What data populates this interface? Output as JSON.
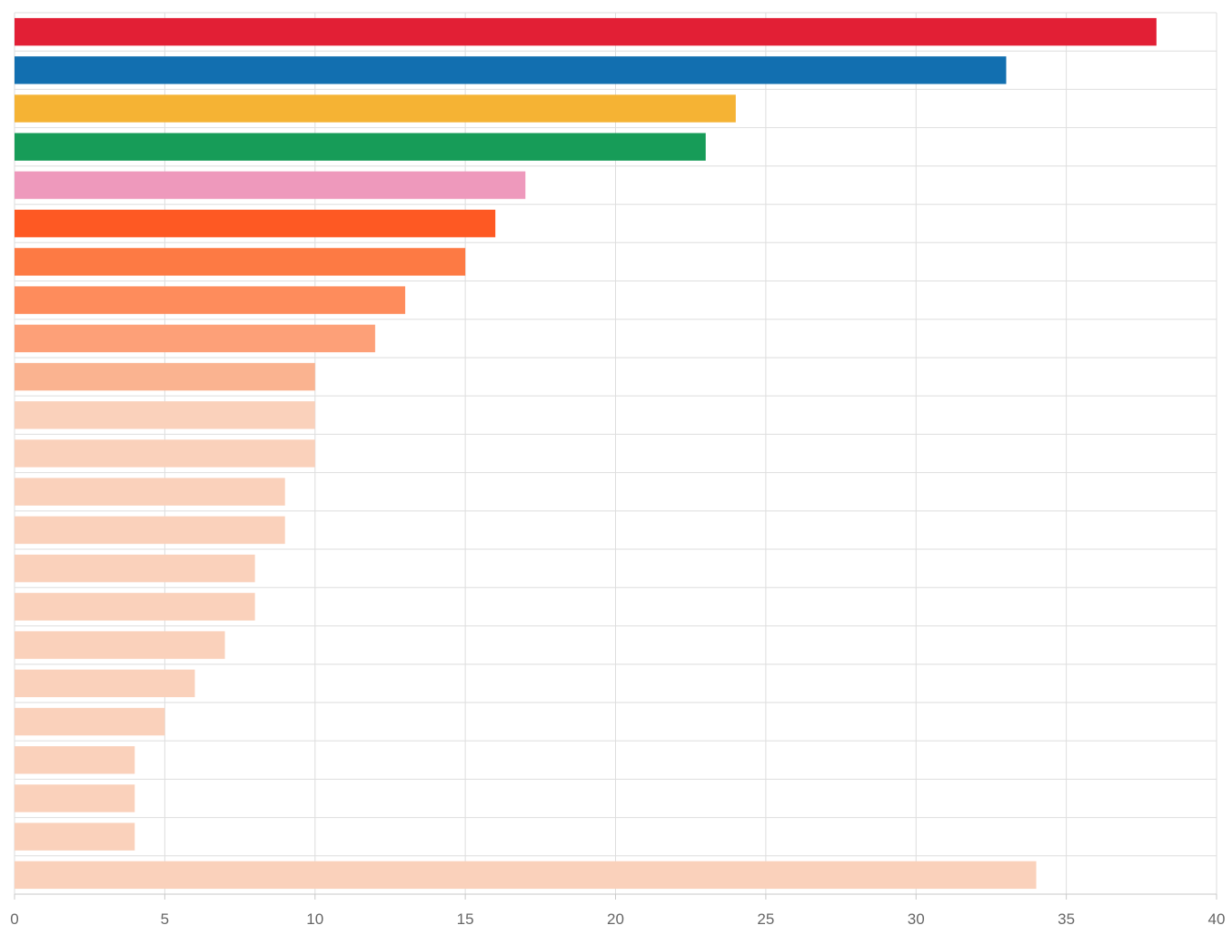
{
  "chart_data": {
    "type": "bar",
    "orientation": "horizontal",
    "title": "",
    "xlabel": "",
    "ylabel": "",
    "xlim": [
      0,
      40
    ],
    "x_ticks": [
      "0",
      "5",
      "10",
      "15",
      "20",
      "25",
      "30",
      "35",
      "40"
    ],
    "grid": true,
    "legend": "none",
    "values": [
      38,
      33,
      24,
      23,
      17,
      16,
      15,
      13,
      12,
      10,
      10,
      10,
      9,
      9,
      8,
      8,
      7,
      6,
      5,
      4,
      4,
      4,
      34
    ],
    "colors": [
      "#e21f35",
      "#126fb0",
      "#f5b334",
      "#179c58",
      "#ee99bc",
      "#fe5923",
      "#fd7a44",
      "#fe8c5c",
      "#fda078",
      "#fab390",
      "#fad1bb",
      "#fad1bb",
      "#fad1bb",
      "#fad1bb",
      "#fad1bb",
      "#fad1bb",
      "#fad1bb",
      "#fad1bb",
      "#fad1bb",
      "#fad1bb",
      "#fad1bb",
      "#fad1bb",
      "#fad1bb"
    ]
  }
}
